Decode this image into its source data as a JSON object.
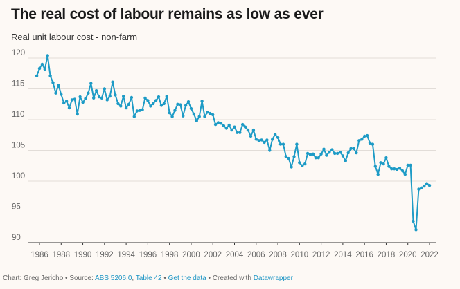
{
  "title": "The real cost of labour remains as low as ever",
  "subtitle": "Real unit labour cost - non-farm",
  "colors": {
    "line": "#1d9bc6",
    "grid": "#e2ddd8",
    "background": "#fdf9f5",
    "link": "#1a94c4"
  },
  "footer": {
    "prefix": "Chart: Greg Jericho • Source: ",
    "source_1": "ABS 5206.0",
    "separator": ", ",
    "source_2": "Table 42",
    "dot_1": " • ",
    "get_data": "Get the data",
    "created": " • Created with ",
    "tool": "Datawrapper"
  },
  "chart_data": {
    "type": "line",
    "title": "The real cost of labour remains as low as ever",
    "subtitle": "Real unit labour cost - non-farm",
    "xlabel": "",
    "ylabel": "",
    "xlim": [
      1985.5,
      2022.3
    ],
    "ylim": [
      90,
      121
    ],
    "x_ticks": [
      1986,
      1988,
      1990,
      1992,
      1994,
      1996,
      1998,
      2000,
      2002,
      2004,
      2006,
      2008,
      2010,
      2012,
      2014,
      2016,
      2018,
      2020,
      2022
    ],
    "x_tick_labels": [
      "1986",
      "1988",
      "1990",
      "1992",
      "1994",
      "1996",
      "1998",
      "2000",
      "2002",
      "2004",
      "2006",
      "2008",
      "2010",
      "2012",
      "2014",
      "2016",
      "2018",
      "2020",
      "2022"
    ],
    "y_ticks": [
      90,
      95,
      100,
      105,
      110,
      115,
      120
    ],
    "y_tick_labels": [
      "90",
      "95",
      "100",
      "105",
      "110",
      "115",
      "120"
    ],
    "grid": true,
    "legend": "none",
    "series": [
      {
        "x": [
          1985.75,
          1986.0,
          1986.25,
          1986.5,
          1986.75,
          1987.0,
          1987.25,
          1987.5,
          1987.75,
          1988.0,
          1988.25,
          1988.5,
          1988.75,
          1989.0,
          1989.25,
          1989.5,
          1989.75,
          1990.0,
          1990.25,
          1990.5,
          1990.75,
          1991.0,
          1991.25,
          1991.5,
          1991.75,
          1992.0,
          1992.25,
          1992.5,
          1992.75,
          1993.0,
          1993.25,
          1993.5,
          1993.75,
          1994.0,
          1994.25,
          1994.5,
          1994.75,
          1995.0,
          1995.25,
          1995.5,
          1995.75,
          1996.0,
          1996.25,
          1996.5,
          1996.75,
          1997.0,
          1997.25,
          1997.5,
          1997.75,
          1998.0,
          1998.25,
          1998.5,
          1998.75,
          1999.0,
          1999.25,
          1999.5,
          1999.75,
          2000.0,
          2000.25,
          2000.5,
          2000.75,
          2001.0,
          2001.25,
          2001.5,
          2001.75,
          2002.0,
          2002.25,
          2002.5,
          2002.75,
          2003.0,
          2003.25,
          2003.5,
          2003.75,
          2004.0,
          2004.25,
          2004.5,
          2004.75,
          2005.0,
          2005.25,
          2005.5,
          2005.75,
          2006.0,
          2006.25,
          2006.5,
          2006.75,
          2007.0,
          2007.25,
          2007.5,
          2007.75,
          2008.0,
          2008.25,
          2008.5,
          2008.75,
          2009.0,
          2009.25,
          2009.5,
          2009.75,
          2010.0,
          2010.25,
          2010.5,
          2010.75,
          2011.0,
          2011.25,
          2011.5,
          2011.75,
          2012.0,
          2012.25,
          2012.5,
          2012.75,
          2013.0,
          2013.25,
          2013.5,
          2013.75,
          2014.0,
          2014.25,
          2014.5,
          2014.75,
          2015.0,
          2015.25,
          2015.5,
          2015.75,
          2016.0,
          2016.25,
          2016.5,
          2016.75,
          2017.0,
          2017.25,
          2017.5,
          2017.75,
          2018.0,
          2018.25,
          2018.5,
          2018.75,
          2019.0,
          2019.25,
          2019.5,
          2019.75,
          2020.0,
          2020.25,
          2020.5,
          2020.75,
          2021.0,
          2021.25,
          2021.5,
          2021.75,
          2022.0
        ],
        "values": [
          117.1,
          118.3,
          119.0,
          118.2,
          120.4,
          117.1,
          116.0,
          114.3,
          115.6,
          114.1,
          112.7,
          113.0,
          111.9,
          113.2,
          113.3,
          110.9,
          113.7,
          112.8,
          113.4,
          114.3,
          115.9,
          113.5,
          114.7,
          113.7,
          113.5,
          115.0,
          113.2,
          113.8,
          116.1,
          114.0,
          112.6,
          112.2,
          113.8,
          111.9,
          112.5,
          113.6,
          110.5,
          111.4,
          111.5,
          111.6,
          113.5,
          113.1,
          112.2,
          112.6,
          113.1,
          113.7,
          112.3,
          112.6,
          113.8,
          111.1,
          110.5,
          111.5,
          112.5,
          112.4,
          110.6,
          112.3,
          112.9,
          111.8,
          110.9,
          109.8,
          110.5,
          113.0,
          110.5,
          111.2,
          111.0,
          110.8,
          109.2,
          109.5,
          109.4,
          109.0,
          108.6,
          109.1,
          108.3,
          108.8,
          107.9,
          107.9,
          109.2,
          108.8,
          108.3,
          107.3,
          108.3,
          106.8,
          106.6,
          106.7,
          106.3,
          106.7,
          105.0,
          106.8,
          107.6,
          107.1,
          106.0,
          106.0,
          104.0,
          103.7,
          102.3,
          104.0,
          106.0,
          103.0,
          102.5,
          102.8,
          104.5,
          104.3,
          104.4,
          103.8,
          103.8,
          104.4,
          105.2,
          104.2,
          104.7,
          105.1,
          104.5,
          104.5,
          104.7,
          104.1,
          103.3,
          104.6,
          105.3,
          105.3,
          104.6,
          106.6,
          106.8,
          107.3,
          107.4,
          106.2,
          106.0,
          102.4,
          101.1,
          103.0,
          102.8,
          103.8,
          102.4,
          102.0,
          102.0,
          101.9,
          102.1,
          101.7,
          101.1,
          102.6,
          102.6,
          93.5,
          92.1,
          98.7,
          98.9,
          99.2,
          99.6,
          99.3
        ]
      }
    ]
  }
}
